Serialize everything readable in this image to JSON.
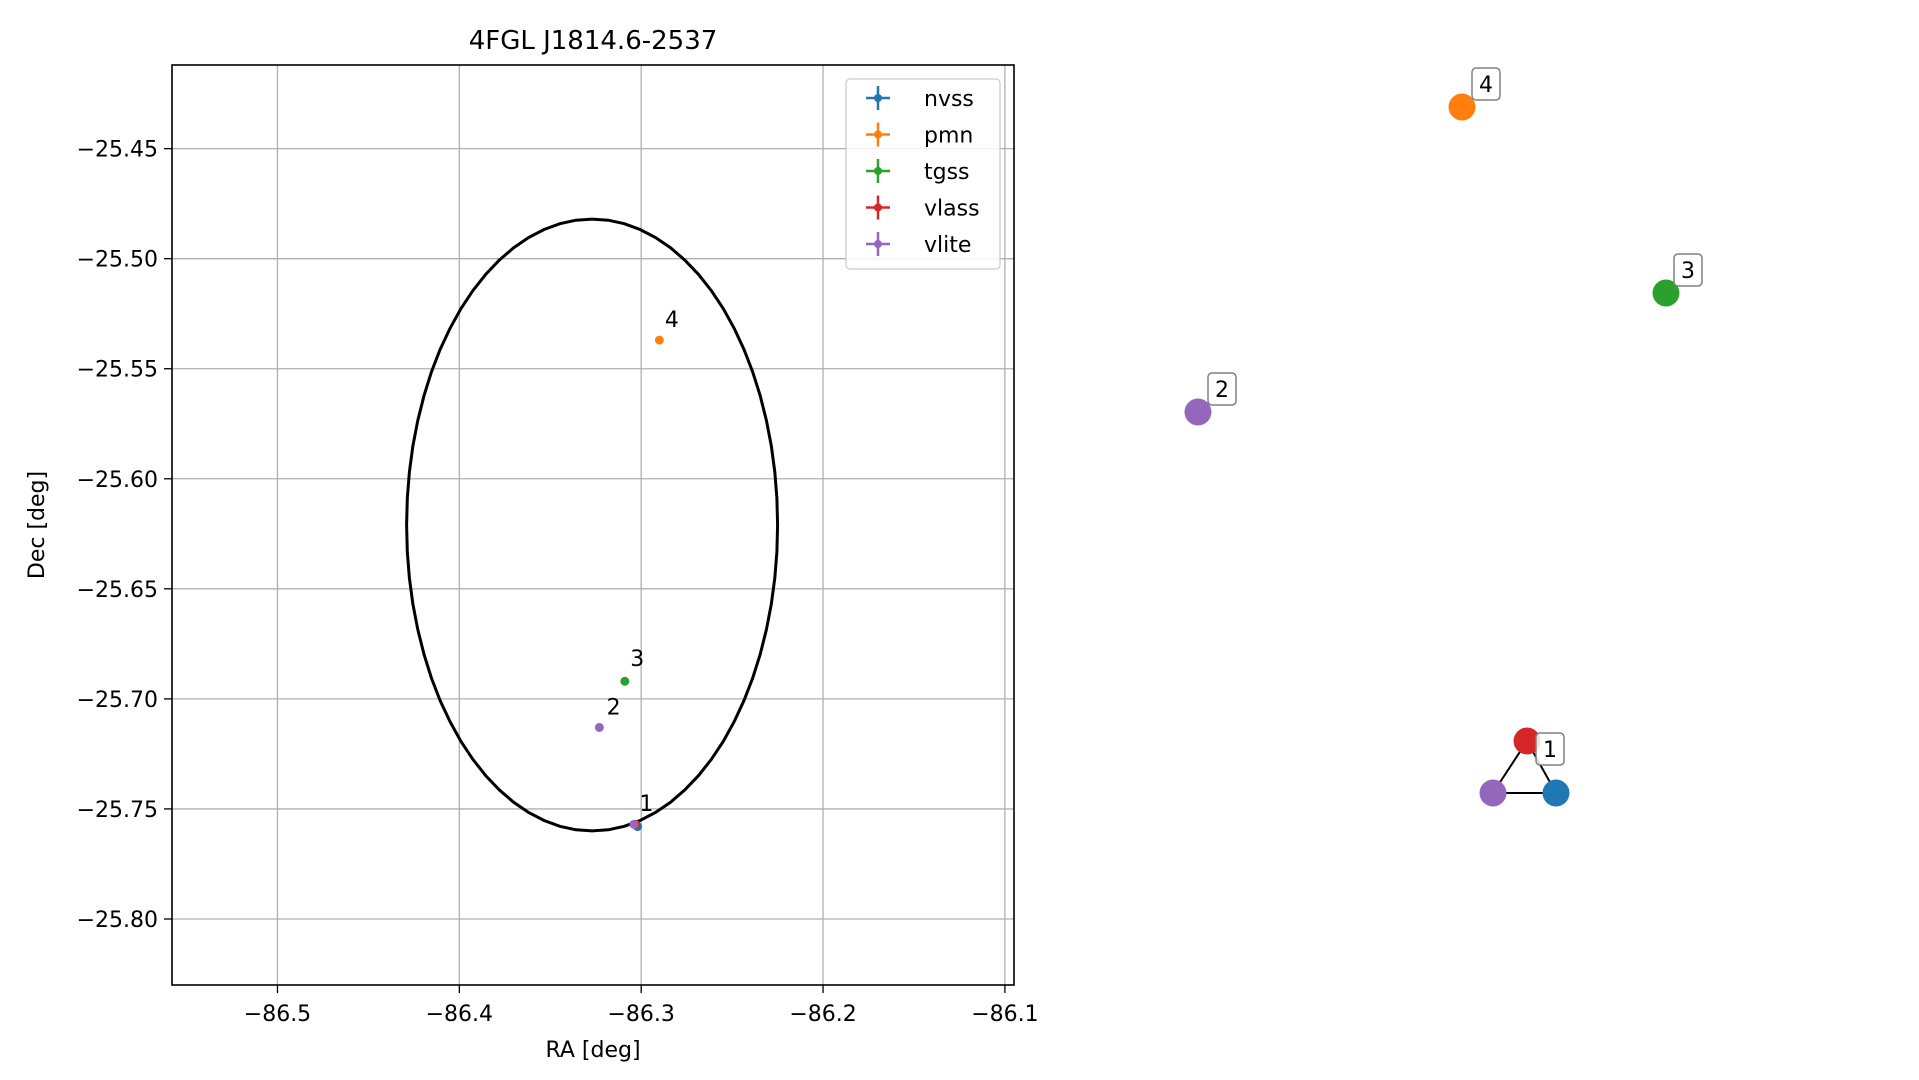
{
  "chart_data": [
    {
      "type": "scatter",
      "title": "4FGL J1814.6-2537",
      "xlabel": "RA [deg]",
      "ylabel": "Dec [deg]",
      "xlim": [
        -86.558,
        -86.095
      ],
      "ylim": [
        -25.83,
        -25.412
      ],
      "grid": true,
      "legend_position": "top-right",
      "xticks": [
        -86.5,
        -86.4,
        -86.3,
        -86.2,
        -86.1
      ],
      "xtick_labels": [
        "−86.5",
        "−86.4",
        "−86.3",
        "−86.2",
        "−86.1"
      ],
      "yticks": [
        -25.45,
        -25.5,
        -25.55,
        -25.6,
        -25.65,
        -25.7,
        -25.75,
        -25.8
      ],
      "ytick_labels": [
        "−25.45",
        "−25.50",
        "−25.55",
        "−25.60",
        "−25.65",
        "−25.70",
        "−25.75",
        "−25.80"
      ],
      "ellipse": {
        "center": [
          -86.327,
          -25.621
        ],
        "half_width_ra": 0.102,
        "half_height_dec": 0.139,
        "color": "#000000"
      },
      "series": [
        {
          "name": "nvss",
          "color": "#1f77b4",
          "points": [
            {
              "x": -86.302,
              "y": -25.758
            }
          ]
        },
        {
          "name": "pmn",
          "color": "#ff7f0e",
          "points": [
            {
              "x": -86.29,
              "y": -25.537
            }
          ]
        },
        {
          "name": "tgss",
          "color": "#2ca02c",
          "points": [
            {
              "x": -86.309,
              "y": -25.692
            }
          ]
        },
        {
          "name": "vlass",
          "color": "#d62728",
          "points": [
            {
              "x": -86.303,
              "y": -25.757
            }
          ]
        },
        {
          "name": "vlite",
          "color": "#9467bd",
          "points": [
            {
              "x": -86.323,
              "y": -25.713
            },
            {
              "x": -86.304,
              "y": -25.757
            }
          ]
        }
      ],
      "point_labels": [
        {
          "text": "1",
          "x": -86.301,
          "y": -25.751
        },
        {
          "text": "2",
          "x": -86.319,
          "y": -25.707
        },
        {
          "text": "3",
          "x": -86.306,
          "y": -25.685
        },
        {
          "text": "4",
          "x": -86.287,
          "y": -25.531
        }
      ]
    },
    {
      "type": "network",
      "nodes": [
        {
          "label": "4",
          "color": "#ff7f0e"
        },
        {
          "label": "3",
          "color": "#2ca02c"
        },
        {
          "label": "2",
          "color": "#9467bd"
        },
        {
          "label": "1",
          "color": "#d62728"
        },
        {
          "label": "",
          "color": "#9467bd"
        },
        {
          "label": "",
          "color": "#1f77b4"
        }
      ],
      "edges": [
        [
          3,
          4
        ],
        [
          3,
          5
        ],
        [
          4,
          5
        ]
      ]
    }
  ]
}
